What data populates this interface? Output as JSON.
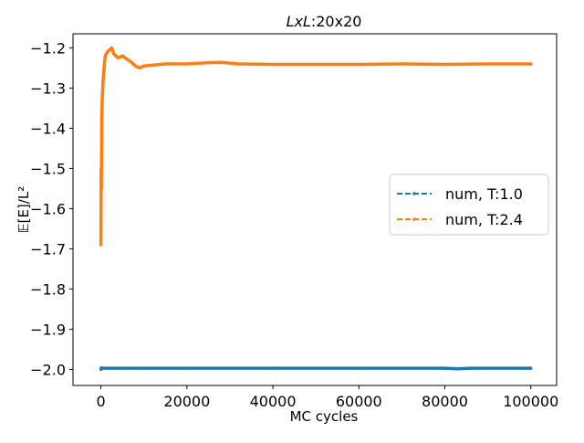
{
  "chart_data": {
    "type": "line",
    "title_prefix": "LxL",
    "title_suffix": ":20x20",
    "xlabel": "MC cycles",
    "ylabel": "𝔼[E]/L²",
    "xlim": [
      -6500,
      106000
    ],
    "ylim": [
      -2.04,
      -1.165
    ],
    "x_ticks": [
      0,
      20000,
      40000,
      60000,
      80000,
      100000
    ],
    "x_tick_labels": [
      "0",
      "20000",
      "40000",
      "60000",
      "80000",
      "100000"
    ],
    "y_ticks": [
      -2.0,
      -1.9,
      -1.8,
      -1.7,
      -1.6,
      -1.5,
      -1.4,
      -1.3,
      -1.2
    ],
    "y_tick_labels": [
      "−2.0",
      "−1.9",
      "−1.8",
      "−1.7",
      "−1.6",
      "−1.5",
      "−1.4",
      "−1.3",
      "−1.2"
    ],
    "grid": false,
    "legend_position": "center-right",
    "series": [
      {
        "name": "num, T:1.0",
        "color": "#1f77b4",
        "linestyle": "dashed",
        "x": [
          0,
          100,
          300,
          1000,
          5000,
          10000,
          20000,
          40000,
          60000,
          80000,
          83000,
          86000,
          100000
        ],
        "y": [
          -2.0,
          -1.996,
          -1.997,
          -1.997,
          -1.997,
          -1.997,
          -1.997,
          -1.997,
          -1.997,
          -1.997,
          -1.9985,
          -1.997,
          -1.997
        ]
      },
      {
        "name": "num, T:2.4",
        "color": "#ff7f0e",
        "linestyle": "dashed",
        "x": [
          0,
          50,
          100,
          150,
          200,
          300,
          500,
          800,
          1000,
          1500,
          2000,
          2500,
          3000,
          4000,
          5000,
          6000,
          7000,
          8000,
          9000,
          10000,
          12000,
          15000,
          20000,
          25000,
          28000,
          32000,
          40000,
          50000,
          60000,
          70000,
          80000,
          90000,
          100000
        ],
        "y": [
          -1.69,
          -1.5,
          -1.55,
          -1.45,
          -1.37,
          -1.33,
          -1.28,
          -1.24,
          -1.22,
          -1.21,
          -1.205,
          -1.2,
          -1.215,
          -1.225,
          -1.22,
          -1.228,
          -1.235,
          -1.245,
          -1.25,
          -1.245,
          -1.243,
          -1.24,
          -1.24,
          -1.237,
          -1.236,
          -1.24,
          -1.241,
          -1.241,
          -1.241,
          -1.24,
          -1.241,
          -1.24,
          -1.24
        ]
      }
    ]
  }
}
